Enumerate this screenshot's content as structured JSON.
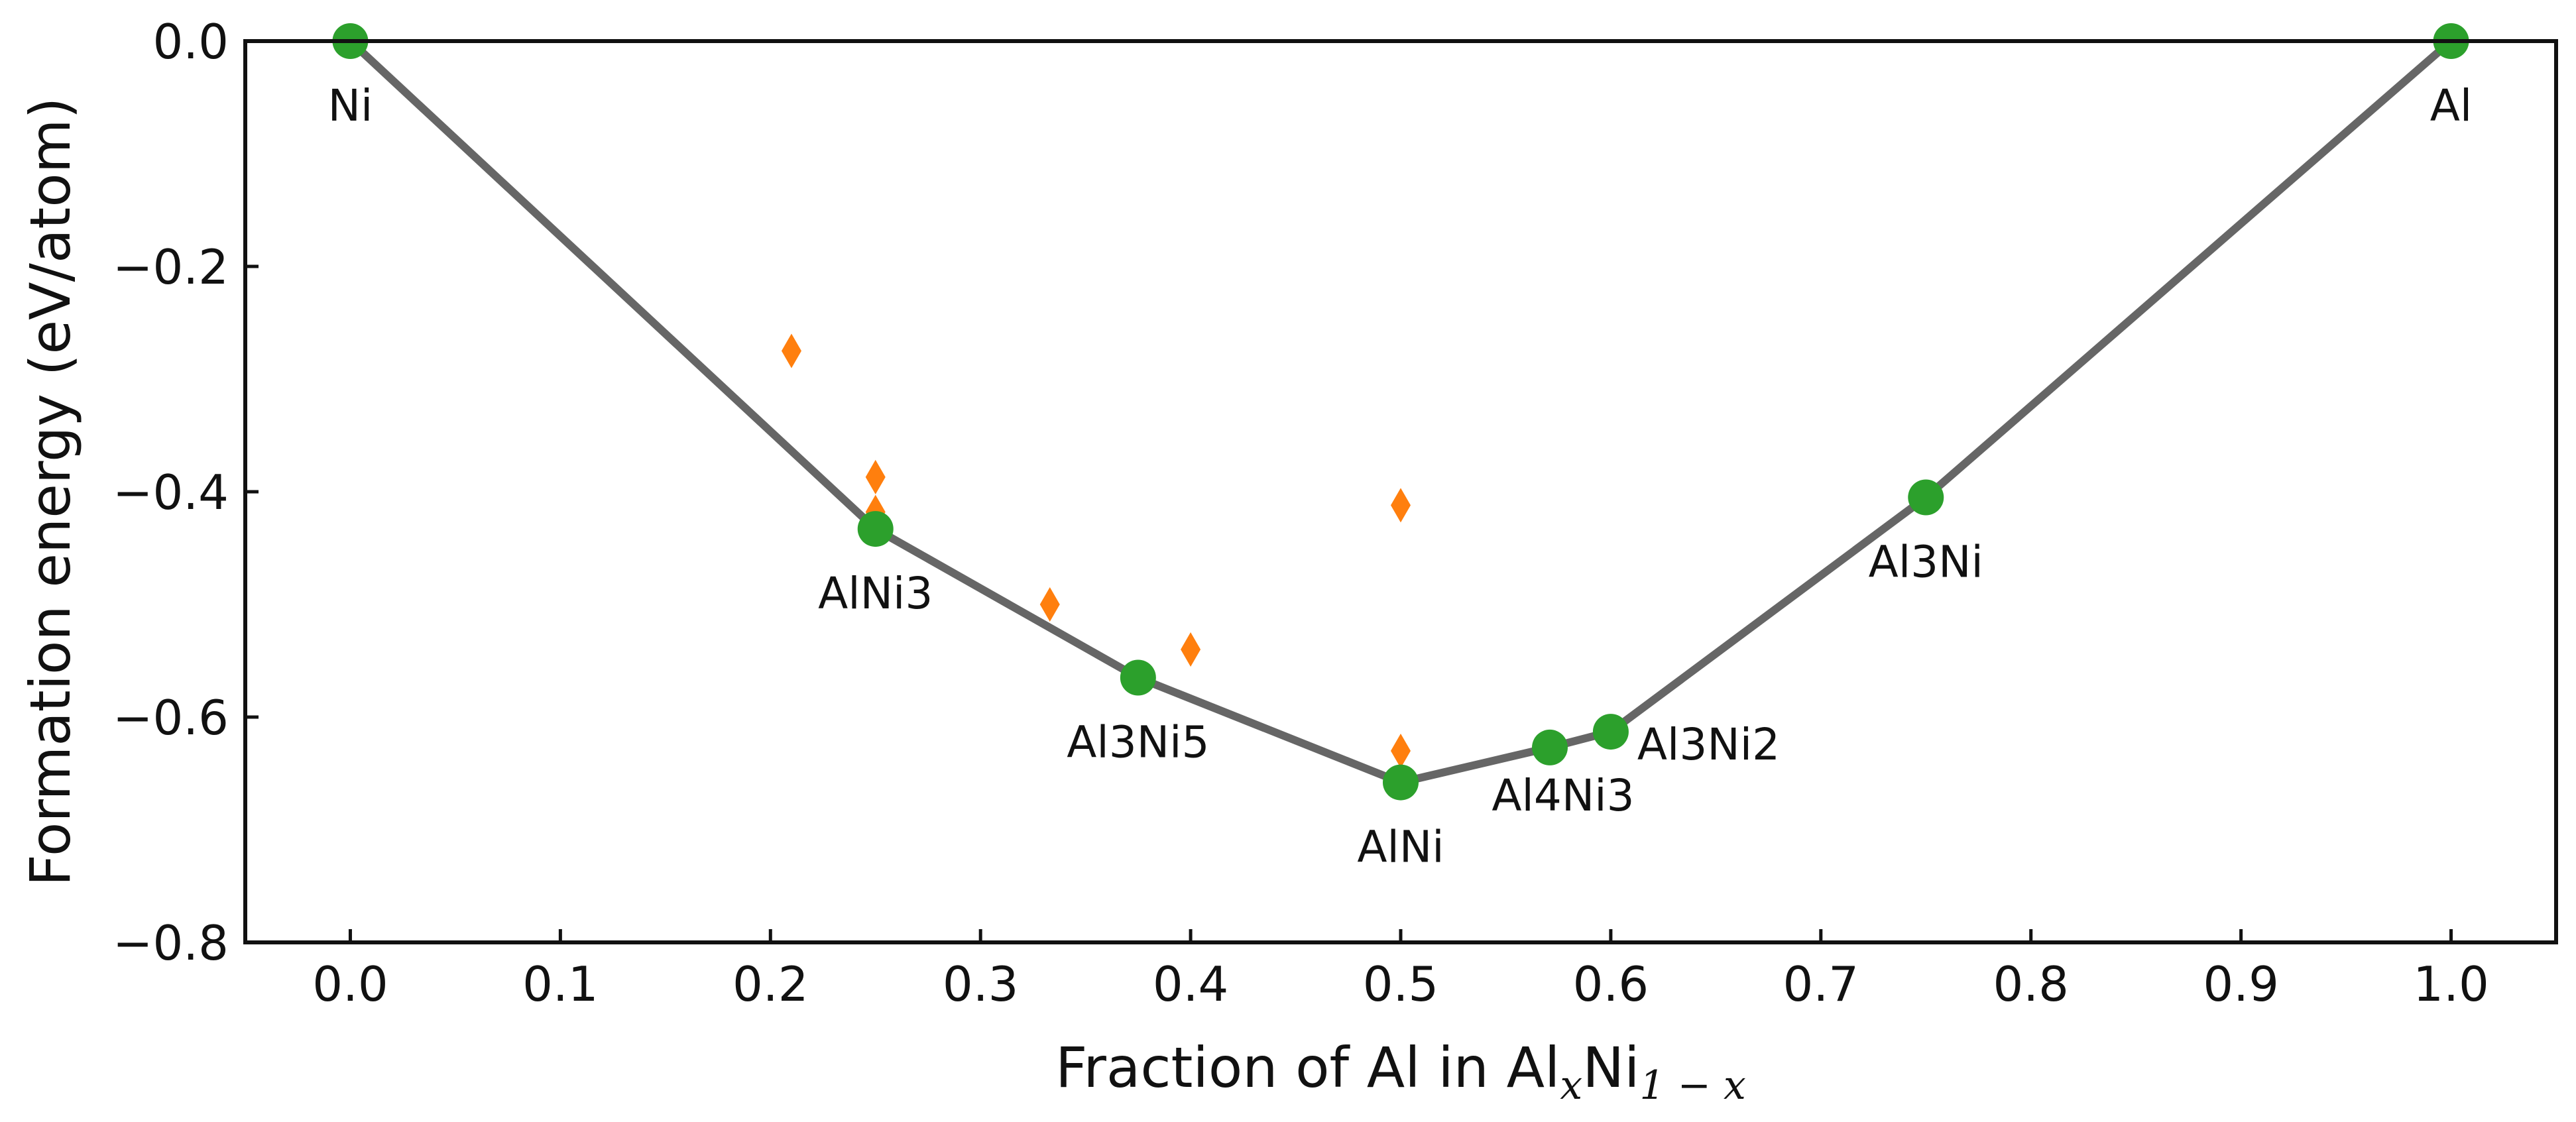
{
  "chart_data": {
    "type": "scatter",
    "xlabel": {
      "base": "Fraction of Al in Al",
      "sub1": "x",
      "mid": "Ni",
      "sub2": "1 − x"
    },
    "ylabel": "Formation energy (eV/atom)",
    "xlim": [
      -0.05,
      1.05
    ],
    "ylim": [
      -0.8,
      0.0
    ],
    "x_ticks": [
      "0.0",
      "0.1",
      "0.2",
      "0.3",
      "0.4",
      "0.5",
      "0.6",
      "0.7",
      "0.8",
      "0.9",
      "1.0"
    ],
    "y_ticks": [
      "0.0",
      "−0.2",
      "−0.4",
      "−0.6",
      "−0.8"
    ],
    "grid": false,
    "colors": {
      "hull_line": "#666666",
      "stable": "#2ca02c",
      "unstable": "#ff7f0e"
    },
    "series": [
      {
        "kind": "hull",
        "points": [
          {
            "x": 0.0,
            "y": 0.0,
            "label": "Ni"
          },
          {
            "x": 0.25,
            "y": -0.433,
            "label": "AlNi3"
          },
          {
            "x": 0.375,
            "y": -0.565,
            "label": "Al3Ni5"
          },
          {
            "x": 0.5,
            "y": -0.658,
            "label": "AlNi"
          },
          {
            "x": 0.571,
            "y": -0.627,
            "label": "Al4Ni3"
          },
          {
            "x": 0.6,
            "y": -0.613,
            "label": "Al3Ni2"
          },
          {
            "x": 0.75,
            "y": -0.405,
            "label": "Al3Ni"
          },
          {
            "x": 1.0,
            "y": 0.0,
            "label": "Al"
          }
        ]
      },
      {
        "kind": "above-hull",
        "points": [
          {
            "x": 0.21,
            "y": -0.275
          },
          {
            "x": 0.25,
            "y": -0.387
          },
          {
            "x": 0.25,
            "y": -0.418
          },
          {
            "x": 0.333,
            "y": -0.5
          },
          {
            "x": 0.4,
            "y": -0.54
          },
          {
            "x": 0.5,
            "y": -0.412
          },
          {
            "x": 0.5,
            "y": -0.63
          }
        ]
      }
    ]
  }
}
